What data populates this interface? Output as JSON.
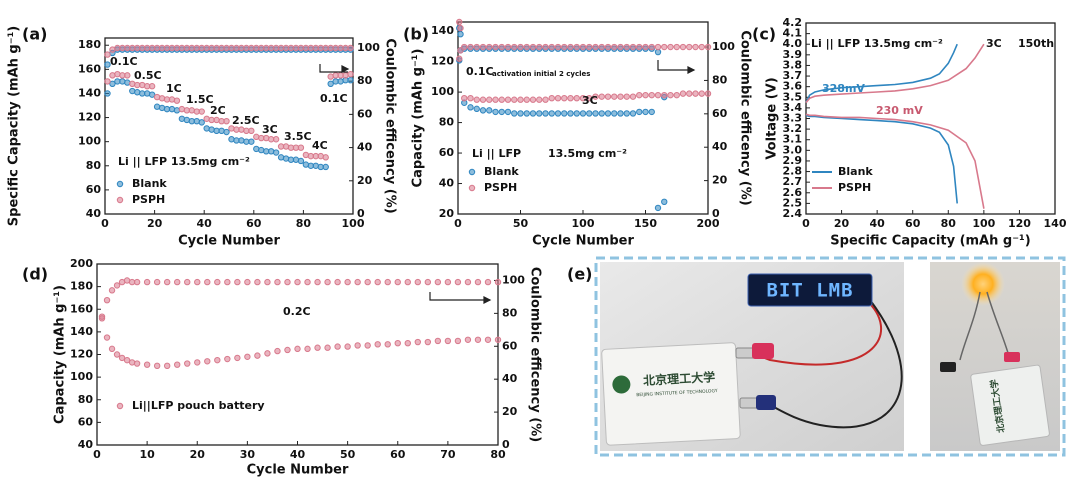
{
  "chart_data": [
    {
      "type": "scatter",
      "panel_label": "(a)",
      "xlabel": "Cycle Number",
      "ylabel": "Specific Capacity (mAh g⁻¹)",
      "y2label": "Coulombic efficency (%)",
      "xlim": [
        0,
        100
      ],
      "xticks": [
        0,
        20,
        40,
        60,
        80,
        100
      ],
      "ylim": [
        40,
        186
      ],
      "yticks": [
        40,
        60,
        80,
        100,
        120,
        140,
        160,
        180
      ],
      "y2lim": [
        0,
        106
      ],
      "y2ticks": [
        0,
        20,
        40,
        60,
        80,
        100
      ],
      "annotations": [
        "0.1C",
        "0.5C",
        "1C",
        "1.5C",
        "2C",
        "2.5C",
        "3C",
        "3.5C",
        "4C",
        "0.1C",
        "Li || LFP  13.5mg cm⁻²"
      ],
      "x": [
        1,
        3,
        5,
        7,
        9,
        11,
        13,
        15,
        17,
        19,
        21,
        23,
        25,
        27,
        29,
        31,
        33,
        35,
        37,
        39,
        41,
        43,
        45,
        47,
        49,
        51,
        53,
        55,
        57,
        59,
        61,
        63,
        65,
        67,
        69,
        71,
        73,
        75,
        77,
        79,
        81,
        83,
        85,
        87,
        89,
        91,
        93,
        95,
        97,
        99
      ],
      "series": [
        {
          "name": "Blank",
          "color": "#2f86c0",
          "values": [
            140,
            148,
            150,
            150,
            149,
            142,
            141,
            140,
            140,
            139,
            129,
            128,
            127,
            127,
            126,
            119,
            118,
            117,
            117,
            116,
            111,
            110,
            109,
            109,
            108,
            102,
            101,
            101,
            100,
            100,
            94,
            93,
            92,
            92,
            91,
            87,
            86,
            85,
            85,
            84,
            81,
            80,
            80,
            79,
            79,
            148,
            150,
            150,
            151,
            151
          ],
          "y2_values": [
            90,
            97,
            99,
            99,
            99,
            99,
            99,
            99,
            99,
            99,
            99,
            99,
            99,
            99,
            99,
            99,
            99,
            99,
            99,
            99,
            99,
            99,
            99,
            99,
            99,
            99,
            99,
            99,
            99,
            99,
            99,
            99,
            99,
            99,
            99,
            99,
            99,
            99,
            99,
            99,
            99,
            99,
            99,
            99,
            99,
            99,
            99,
            99,
            99,
            99
          ]
        },
        {
          "name": "PSPH",
          "color": "#d8798c",
          "values": [
            150,
            155,
            156,
            155,
            155,
            148,
            147,
            147,
            146,
            146,
            137,
            136,
            135,
            135,
            134,
            127,
            126,
            126,
            125,
            125,
            119,
            118,
            118,
            117,
            117,
            111,
            110,
            110,
            109,
            109,
            104,
            103,
            103,
            102,
            102,
            96,
            96,
            95,
            95,
            95,
            89,
            88,
            88,
            88,
            87,
            154,
            155,
            155,
            155,
            156
          ],
          "y2_values": [
            96,
            99,
            100,
            100,
            100,
            100,
            100,
            100,
            100,
            100,
            100,
            100,
            100,
            100,
            100,
            100,
            100,
            100,
            100,
            100,
            100,
            100,
            100,
            100,
            100,
            100,
            100,
            100,
            100,
            100,
            100,
            100,
            100,
            100,
            100,
            100,
            100,
            100,
            100,
            100,
            100,
            100,
            100,
            100,
            100,
            100,
            100,
            100,
            100,
            100
          ]
        }
      ]
    },
    {
      "type": "scatter",
      "panel_label": "(b)",
      "xlabel": "Cycle Number",
      "ylabel": "Capacity (mAh g⁻¹)",
      "y2label": "Coulombic efficency (%)",
      "xlim": [
        0,
        200
      ],
      "xticks": [
        0,
        50,
        100,
        150,
        200
      ],
      "ylim": [
        20,
        146
      ],
      "yticks": [
        20,
        40,
        60,
        80,
        100,
        120,
        140
      ],
      "y2lim": [
        0,
        115
      ],
      "y2ticks": [
        0,
        20,
        40,
        60,
        80,
        100
      ],
      "annotations": [
        "0.1C",
        "activation initial 2 cycles",
        "3C",
        "Li || LFP",
        "13.5mg cm⁻²"
      ],
      "x": [
        1,
        2,
        5,
        10,
        15,
        20,
        25,
        30,
        35,
        40,
        45,
        50,
        55,
        60,
        65,
        70,
        75,
        80,
        85,
        90,
        95,
        100,
        105,
        110,
        115,
        120,
        125,
        130,
        135,
        140,
        145,
        150,
        155,
        160,
        165,
        170,
        175,
        180,
        185,
        190,
        195,
        200
      ],
      "series": [
        {
          "name": "Blank",
          "color": "#2f86c0",
          "values": [
            142,
            138,
            93,
            90,
            89,
            88,
            88,
            87,
            87,
            87,
            86,
            86,
            86,
            86,
            86,
            86,
            86,
            86,
            86,
            86,
            86,
            86,
            86,
            86,
            86,
            86,
            86,
            86,
            86,
            86,
            87,
            87,
            87,
            24,
            28,
            null,
            null,
            null,
            null,
            null,
            null,
            null
          ],
          "y2_values": [
            92,
            98,
            99,
            99,
            99,
            99,
            99,
            99,
            99,
            99,
            99,
            99,
            99,
            99,
            99,
            99,
            99,
            99,
            99,
            99,
            99,
            99,
            99,
            99,
            99,
            99,
            99,
            99,
            99,
            99,
            99,
            99,
            99,
            97,
            70,
            null,
            null,
            null,
            null,
            null,
            null,
            null
          ]
        },
        {
          "name": "PSPH",
          "color": "#d8798c",
          "values": [
            146,
            142,
            96,
            96,
            95,
            95,
            95,
            95,
            95,
            95,
            95,
            95,
            95,
            95,
            95,
            95,
            96,
            96,
            96,
            96,
            96,
            96,
            96,
            97,
            97,
            97,
            97,
            97,
            97,
            97,
            98,
            98,
            98,
            98,
            98,
            98,
            98,
            99,
            99,
            99,
            99,
            99
          ],
          "y2_values": [
            93,
            98,
            100,
            100,
            100,
            100,
            100,
            100,
            100,
            100,
            100,
            100,
            100,
            100,
            100,
            100,
            100,
            100,
            100,
            100,
            100,
            100,
            100,
            100,
            100,
            100,
            100,
            100,
            100,
            100,
            100,
            100,
            100,
            100,
            100,
            100,
            100,
            100,
            100,
            100,
            100,
            100
          ]
        }
      ]
    },
    {
      "type": "line",
      "panel_label": "(c)",
      "xlabel": "Specific Capacity (mAh g⁻¹)",
      "ylabel": "Voltage (V)",
      "xlim": [
        0,
        140
      ],
      "xticks": [
        0,
        20,
        40,
        60,
        80,
        100,
        120,
        140
      ],
      "ylim": [
        2.4,
        4.2
      ],
      "yticks": [
        2.4,
        2.5,
        2.6,
        2.7,
        2.8,
        2.9,
        {
          "value": 3,
          "label": "3.0"
        },
        3.1,
        3.2,
        3.3,
        3.4,
        3.5,
        3.6,
        3.7,
        3.8,
        3.9,
        {
          "value": 4,
          "label": "4.0"
        },
        4.1,
        4.2
      ],
      "annotations": [
        "Li || LFP  13.5mg cm⁻²",
        "3C",
        "150th",
        "328mV",
        "230 mV"
      ],
      "series": [
        {
          "name": "Blank",
          "color": "#2f86c0",
          "curves": [
            {
              "x": [
                0,
                2,
                5,
                10,
                20,
                30,
                40,
                50,
                60,
                70,
                75,
                80,
                83,
                85
              ],
              "values": [
                3.45,
                3.52,
                3.55,
                3.57,
                3.59,
                3.6,
                3.61,
                3.62,
                3.64,
                3.68,
                3.72,
                3.82,
                3.92,
                4.0
              ]
            },
            {
              "x": [
                0,
                2,
                5,
                10,
                20,
                30,
                40,
                50,
                60,
                70,
                75,
                80,
                83,
                85
              ],
              "values": [
                3.33,
                3.32,
                3.32,
                3.31,
                3.3,
                3.29,
                3.28,
                3.27,
                3.25,
                3.21,
                3.17,
                3.05,
                2.85,
                2.5
              ]
            }
          ]
        },
        {
          "name": "PSPH",
          "color": "#d8798c",
          "curves": [
            {
              "x": [
                0,
                2,
                5,
                10,
                20,
                30,
                40,
                50,
                60,
                70,
                80,
                90,
                95,
                100
              ],
              "values": [
                3.45,
                3.49,
                3.51,
                3.52,
                3.53,
                3.54,
                3.55,
                3.56,
                3.58,
                3.61,
                3.66,
                3.77,
                3.87,
                4.0
              ]
            },
            {
              "x": [
                0,
                2,
                5,
                10,
                20,
                30,
                40,
                50,
                60,
                70,
                80,
                90,
                95,
                100
              ],
              "values": [
                3.34,
                3.33,
                3.33,
                3.32,
                3.31,
                3.31,
                3.3,
                3.29,
                3.27,
                3.24,
                3.19,
                3.07,
                2.9,
                2.45
              ]
            }
          ]
        }
      ]
    },
    {
      "type": "scatter",
      "panel_label": "(d)",
      "xlabel": "Cycle Number",
      "ylabel": "Capacity (mAh g⁻¹)",
      "y2label": "Coulombic efficency (%)",
      "xlim": [
        0,
        80
      ],
      "xticks": [
        0,
        10,
        20,
        30,
        40,
        50,
        60,
        70,
        80
      ],
      "ylim": [
        40,
        200
      ],
      "yticks": [
        40,
        60,
        80,
        100,
        120,
        140,
        160,
        180,
        200
      ],
      "y2lim": [
        0,
        110
      ],
      "y2ticks": [
        0,
        20,
        40,
        60,
        80,
        100
      ],
      "annotations": [
        "0.2C"
      ],
      "x": [
        1,
        2,
        3,
        4,
        5,
        6,
        7,
        8,
        10,
        12,
        14,
        16,
        18,
        20,
        22,
        24,
        26,
        28,
        30,
        32,
        34,
        36,
        38,
        40,
        42,
        44,
        46,
        48,
        50,
        52,
        54,
        56,
        58,
        60,
        62,
        64,
        66,
        68,
        70,
        72,
        74,
        76,
        78,
        80
      ],
      "series": [
        {
          "name": "Li||LFP pouch battery",
          "color": "#d8798c",
          "values": [
            152,
            135,
            125,
            120,
            117,
            115,
            113,
            112,
            111,
            110,
            110,
            111,
            112,
            113,
            114,
            115,
            116,
            117,
            118,
            119,
            121,
            123,
            124,
            125,
            125,
            126,
            126,
            127,
            127,
            128,
            128,
            129,
            129,
            130,
            130,
            131,
            131,
            132,
            132,
            132,
            133,
            133,
            133,
            133
          ],
          "y2_values": [
            78,
            88,
            94,
            97,
            99,
            100,
            99,
            99,
            99,
            99,
            99,
            99,
            99,
            99,
            99,
            99,
            99,
            99,
            99,
            99,
            99,
            99,
            99,
            99,
            99,
            99,
            99,
            99,
            99,
            99,
            99,
            99,
            99,
            99,
            99,
            99,
            99,
            99,
            99,
            99,
            99,
            99,
            99,
            99
          ]
        }
      ]
    }
  ],
  "photo": {
    "panel_label": "(e)",
    "display_text": "BIT LMB",
    "battery_text": "北京理工大学",
    "battery_subtext": "BEIJING INSTITUTE OF TECHNOLOGY",
    "battery_text_2": "北京理工大学"
  }
}
